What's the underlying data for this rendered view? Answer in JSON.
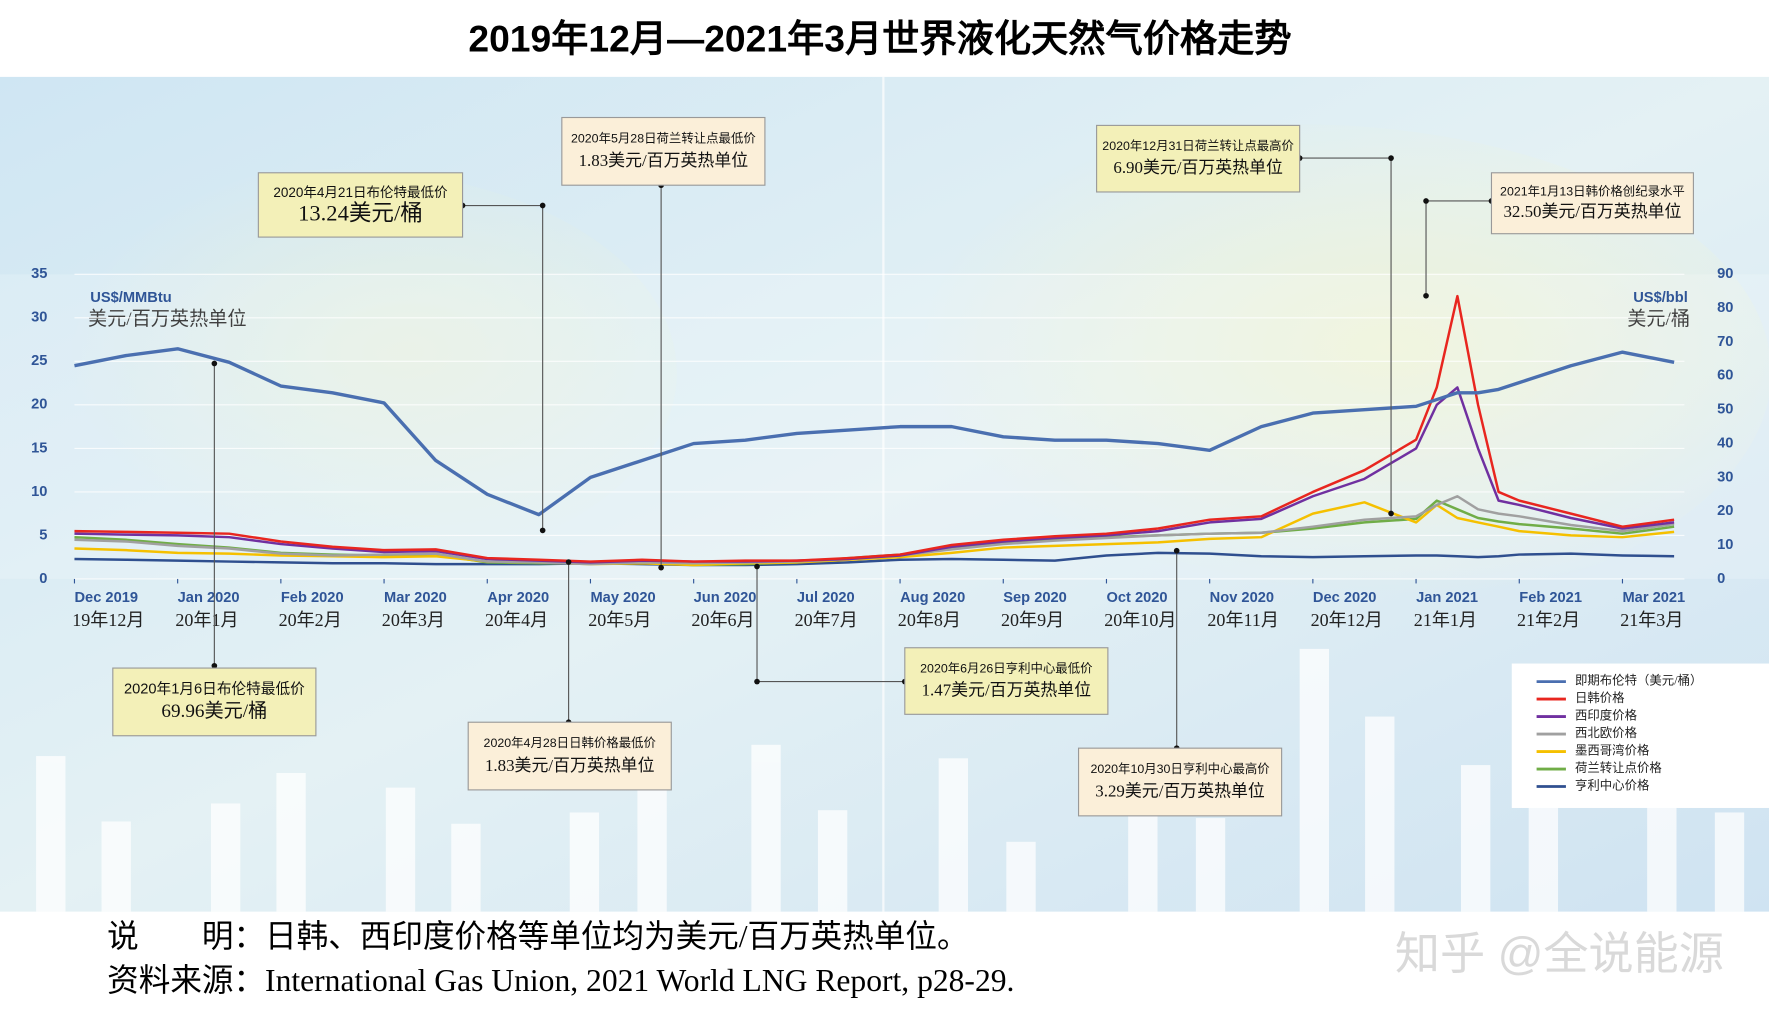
{
  "chart_data": {
    "type": "line",
    "title": "2019年12月—2021年3月世界液化天然气价格走势",
    "y_label_en": "US$/MMBtu",
    "y_label_cn": "美元/百万英热单位",
    "y2_label_en": "US$/bbl",
    "y2_label_cn": "美元/桶",
    "x": [
      0,
      0.5,
      1,
      1.5,
      2,
      2.5,
      3,
      3.5,
      4,
      4.5,
      5,
      5.5,
      6,
      6.5,
      7,
      7.5,
      8,
      8.5,
      9,
      9.5,
      10,
      10.5,
      11,
      11.5,
      12,
      12.5,
      13,
      13.2,
      13.4,
      13.6,
      13.8,
      14,
      14.5,
      15,
      15.5
    ],
    "xlim": [
      0,
      15.6
    ],
    "xticks": [
      {
        "value": 0,
        "label": "Dec 2019"
      },
      {
        "value": 1,
        "label": "Jan 2020"
      },
      {
        "value": 2,
        "label": "Feb 2020"
      },
      {
        "value": 3,
        "label": "Mar 2020"
      },
      {
        "value": 4,
        "label": "Apr 2020"
      },
      {
        "value": 5,
        "label": "May 2020"
      },
      {
        "value": 6,
        "label": "Jun 2020"
      },
      {
        "value": 7,
        "label": "Jul 2020"
      },
      {
        "value": 8,
        "label": "Aug 2020"
      },
      {
        "value": 9,
        "label": "Sep 2020"
      },
      {
        "value": 10,
        "label": "Oct 2020"
      },
      {
        "value": 11,
        "label": "Nov 2020"
      },
      {
        "value": 12,
        "label": "Dec 2020"
      },
      {
        "value": 13,
        "label": "Jan 2021"
      },
      {
        "value": 14,
        "label": "Feb 2021"
      },
      {
        "value": 15,
        "label": "Mar 2021"
      }
    ],
    "xtick_labels_cn": [
      "19年12月",
      "20年1月",
      "20年2月",
      "20年3月",
      "20年4月",
      "20年5月",
      "20年6月",
      "20年7月",
      "20年8月",
      "20年9月",
      "20年10月",
      "20年11月",
      "20年12月",
      "21年1月",
      "21年2月",
      "21年3月"
    ],
    "ylim": [
      0,
      35
    ],
    "yticks": [
      0,
      5,
      10,
      15,
      20,
      25,
      30,
      35
    ],
    "y2lim": [
      0,
      90
    ],
    "y2ticks": [
      0,
      10,
      20,
      30,
      40,
      50,
      60,
      70,
      80,
      90
    ],
    "grid": true,
    "series": [
      {
        "name": "即期布伦特（美元/桶）",
        "color": "#4a6fb0",
        "axis": "y2",
        "values": [
          63,
          66,
          68,
          64,
          57,
          55,
          52,
          35,
          25,
          19,
          30,
          35,
          40,
          41,
          43,
          44,
          45,
          45,
          42,
          41,
          41,
          40,
          38,
          45,
          49,
          50,
          51,
          53,
          55,
          55,
          56,
          58,
          63,
          67,
          64
        ]
      },
      {
        "name": "日韩价格",
        "color": "#e8261f",
        "values": [
          5.5,
          5.4,
          5.3,
          5.2,
          4.3,
          3.7,
          3.3,
          3.4,
          2.4,
          2.2,
          2.0,
          2.2,
          2.0,
          2.1,
          2.1,
          2.4,
          2.8,
          3.9,
          4.5,
          4.9,
          5.2,
          5.8,
          6.8,
          7.2,
          10.0,
          12.5,
          16,
          22,
          32.5,
          20,
          10,
          9,
          7.5,
          6,
          6.8
        ]
      },
      {
        "name": "西印度价格",
        "color": "#7030a0",
        "values": [
          5.2,
          5.1,
          5.0,
          4.8,
          4.0,
          3.5,
          3.1,
          3.2,
          2.3,
          2.1,
          1.9,
          2.1,
          2.0,
          2.0,
          2.1,
          2.3,
          2.7,
          3.7,
          4.3,
          4.7,
          5.0,
          5.5,
          6.5,
          6.9,
          9.5,
          11.5,
          15,
          20,
          22,
          15,
          9,
          8.5,
          7,
          5.8,
          6.5
        ]
      },
      {
        "name": "西北欧价格",
        "color": "#a0a0a0",
        "values": [
          4.5,
          4.3,
          3.8,
          3.5,
          2.9,
          2.7,
          2.8,
          2.9,
          2.0,
          1.9,
          1.7,
          1.9,
          1.8,
          1.9,
          2.0,
          2.3,
          2.7,
          3.4,
          4.0,
          4.4,
          4.7,
          5.0,
          5.2,
          5.3,
          6.0,
          6.8,
          7.2,
          8.5,
          9.5,
          8,
          7.5,
          7.2,
          6.2,
          5.5,
          6.3
        ]
      },
      {
        "name": "墨西哥湾价格",
        "color": "#f5c000",
        "values": [
          3.5,
          3.3,
          3.0,
          2.9,
          2.7,
          2.6,
          2.5,
          2.6,
          2.0,
          1.9,
          1.7,
          1.8,
          1.6,
          1.8,
          1.9,
          2.2,
          2.5,
          3.0,
          3.6,
          3.8,
          4.0,
          4.2,
          4.6,
          4.8,
          7.5,
          8.8,
          6.5,
          8.5,
          7,
          6.5,
          6,
          5.5,
          5.0,
          4.8,
          5.4
        ]
      },
      {
        "name": "荷兰转让点价格",
        "color": "#70ad47",
        "values": [
          4.8,
          4.5,
          4.0,
          3.6,
          3.0,
          2.8,
          2.7,
          2.8,
          1.9,
          1.8,
          1.8,
          1.9,
          1.6,
          1.7,
          1.9,
          2.4,
          2.8,
          3.5,
          4.2,
          4.5,
          4.8,
          5.0,
          5.2,
          5.3,
          5.8,
          6.5,
          6.9,
          9,
          8,
          7,
          6.6,
          6.3,
          5.8,
          5.2,
          6.0
        ]
      },
      {
        "name": "亨利中心价格",
        "color": "#2f4f8f",
        "values": [
          2.3,
          2.2,
          2.1,
          2.0,
          1.9,
          1.8,
          1.8,
          1.7,
          1.7,
          1.7,
          1.8,
          1.7,
          1.6,
          1.6,
          1.7,
          1.9,
          2.2,
          2.3,
          2.2,
          2.1,
          2.7,
          3.0,
          2.9,
          2.6,
          2.5,
          2.6,
          2.7,
          2.7,
          2.6,
          2.5,
          2.6,
          2.8,
          2.9,
          2.7,
          2.6
        ]
      }
    ],
    "annotations": [
      {
        "date_text": "2020年1月6日布伦特最低价",
        "value_text": "69.96美元/桶"
      },
      {
        "date_text": "2020年4月21日布伦特最低价",
        "value_text": "13.24美元/桶"
      },
      {
        "date_text": "2020年4月28日日韩价格最低价",
        "value_text": "1.83美元/百万英热单位"
      },
      {
        "date_text": "2020年5月28日荷兰转让点最低价",
        "value_text": "1.83美元/百万英热单位"
      },
      {
        "date_text": "2020年6月26日亨利中心最低价",
        "value_text": "1.47美元/百万英热单位"
      },
      {
        "date_text": "2020年10月30日亨利中心最高价",
        "value_text": "3.29美元/百万英热单位"
      },
      {
        "date_text": "2020年12月31日荷兰转让点最高价",
        "value_text": "6.90美元/百万英热单位"
      },
      {
        "date_text": "2021年1月13日韩价格创纪录水平",
        "value_text": "32.50美元/百万英热单位"
      }
    ]
  },
  "footer": {
    "note": "说　　明：日韩、西印度价格等单位均为美元/百万英热单位。",
    "source": "资料来源：International Gas Union, 2021 World LNG Report, p28-29.",
    "watermark": "知乎 @全说能源"
  }
}
